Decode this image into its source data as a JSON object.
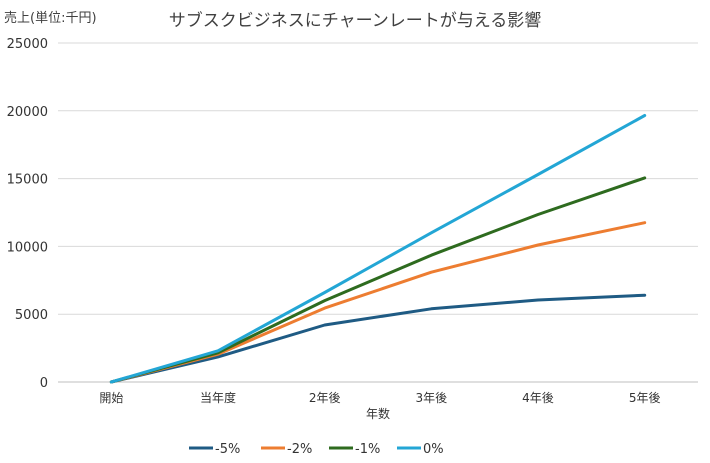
{
  "chart_data": {
    "type": "line",
    "title": "サブスクビジネスにチャーンレートが与える影響",
    "ylabel": "売上(単位:千円)",
    "xlabel": "年数",
    "categories": [
      "開始",
      "当年度",
      "2年後",
      "3年後",
      "4年後",
      "5年後"
    ],
    "ylim": [
      0,
      25000
    ],
    "yticks": [
      0,
      5000,
      10000,
      15000,
      20000,
      25000
    ],
    "grid": true,
    "legend_position": "bottom",
    "series": [
      {
        "name": "-5%",
        "color": "#1f5b84",
        "values": [
          0,
          1850,
          4200,
          5400,
          6050,
          6400
        ]
      },
      {
        "name": "-2%",
        "color": "#ed7d31",
        "values": [
          0,
          2050,
          5450,
          8100,
          10100,
          11750
        ]
      },
      {
        "name": "-1%",
        "color": "#2e6b1f",
        "values": [
          0,
          2150,
          6000,
          9350,
          12350,
          15050
        ]
      },
      {
        "name": "0%",
        "color": "#23a6d5",
        "values": [
          0,
          2300,
          6600,
          11000,
          15300,
          19650
        ]
      }
    ]
  }
}
